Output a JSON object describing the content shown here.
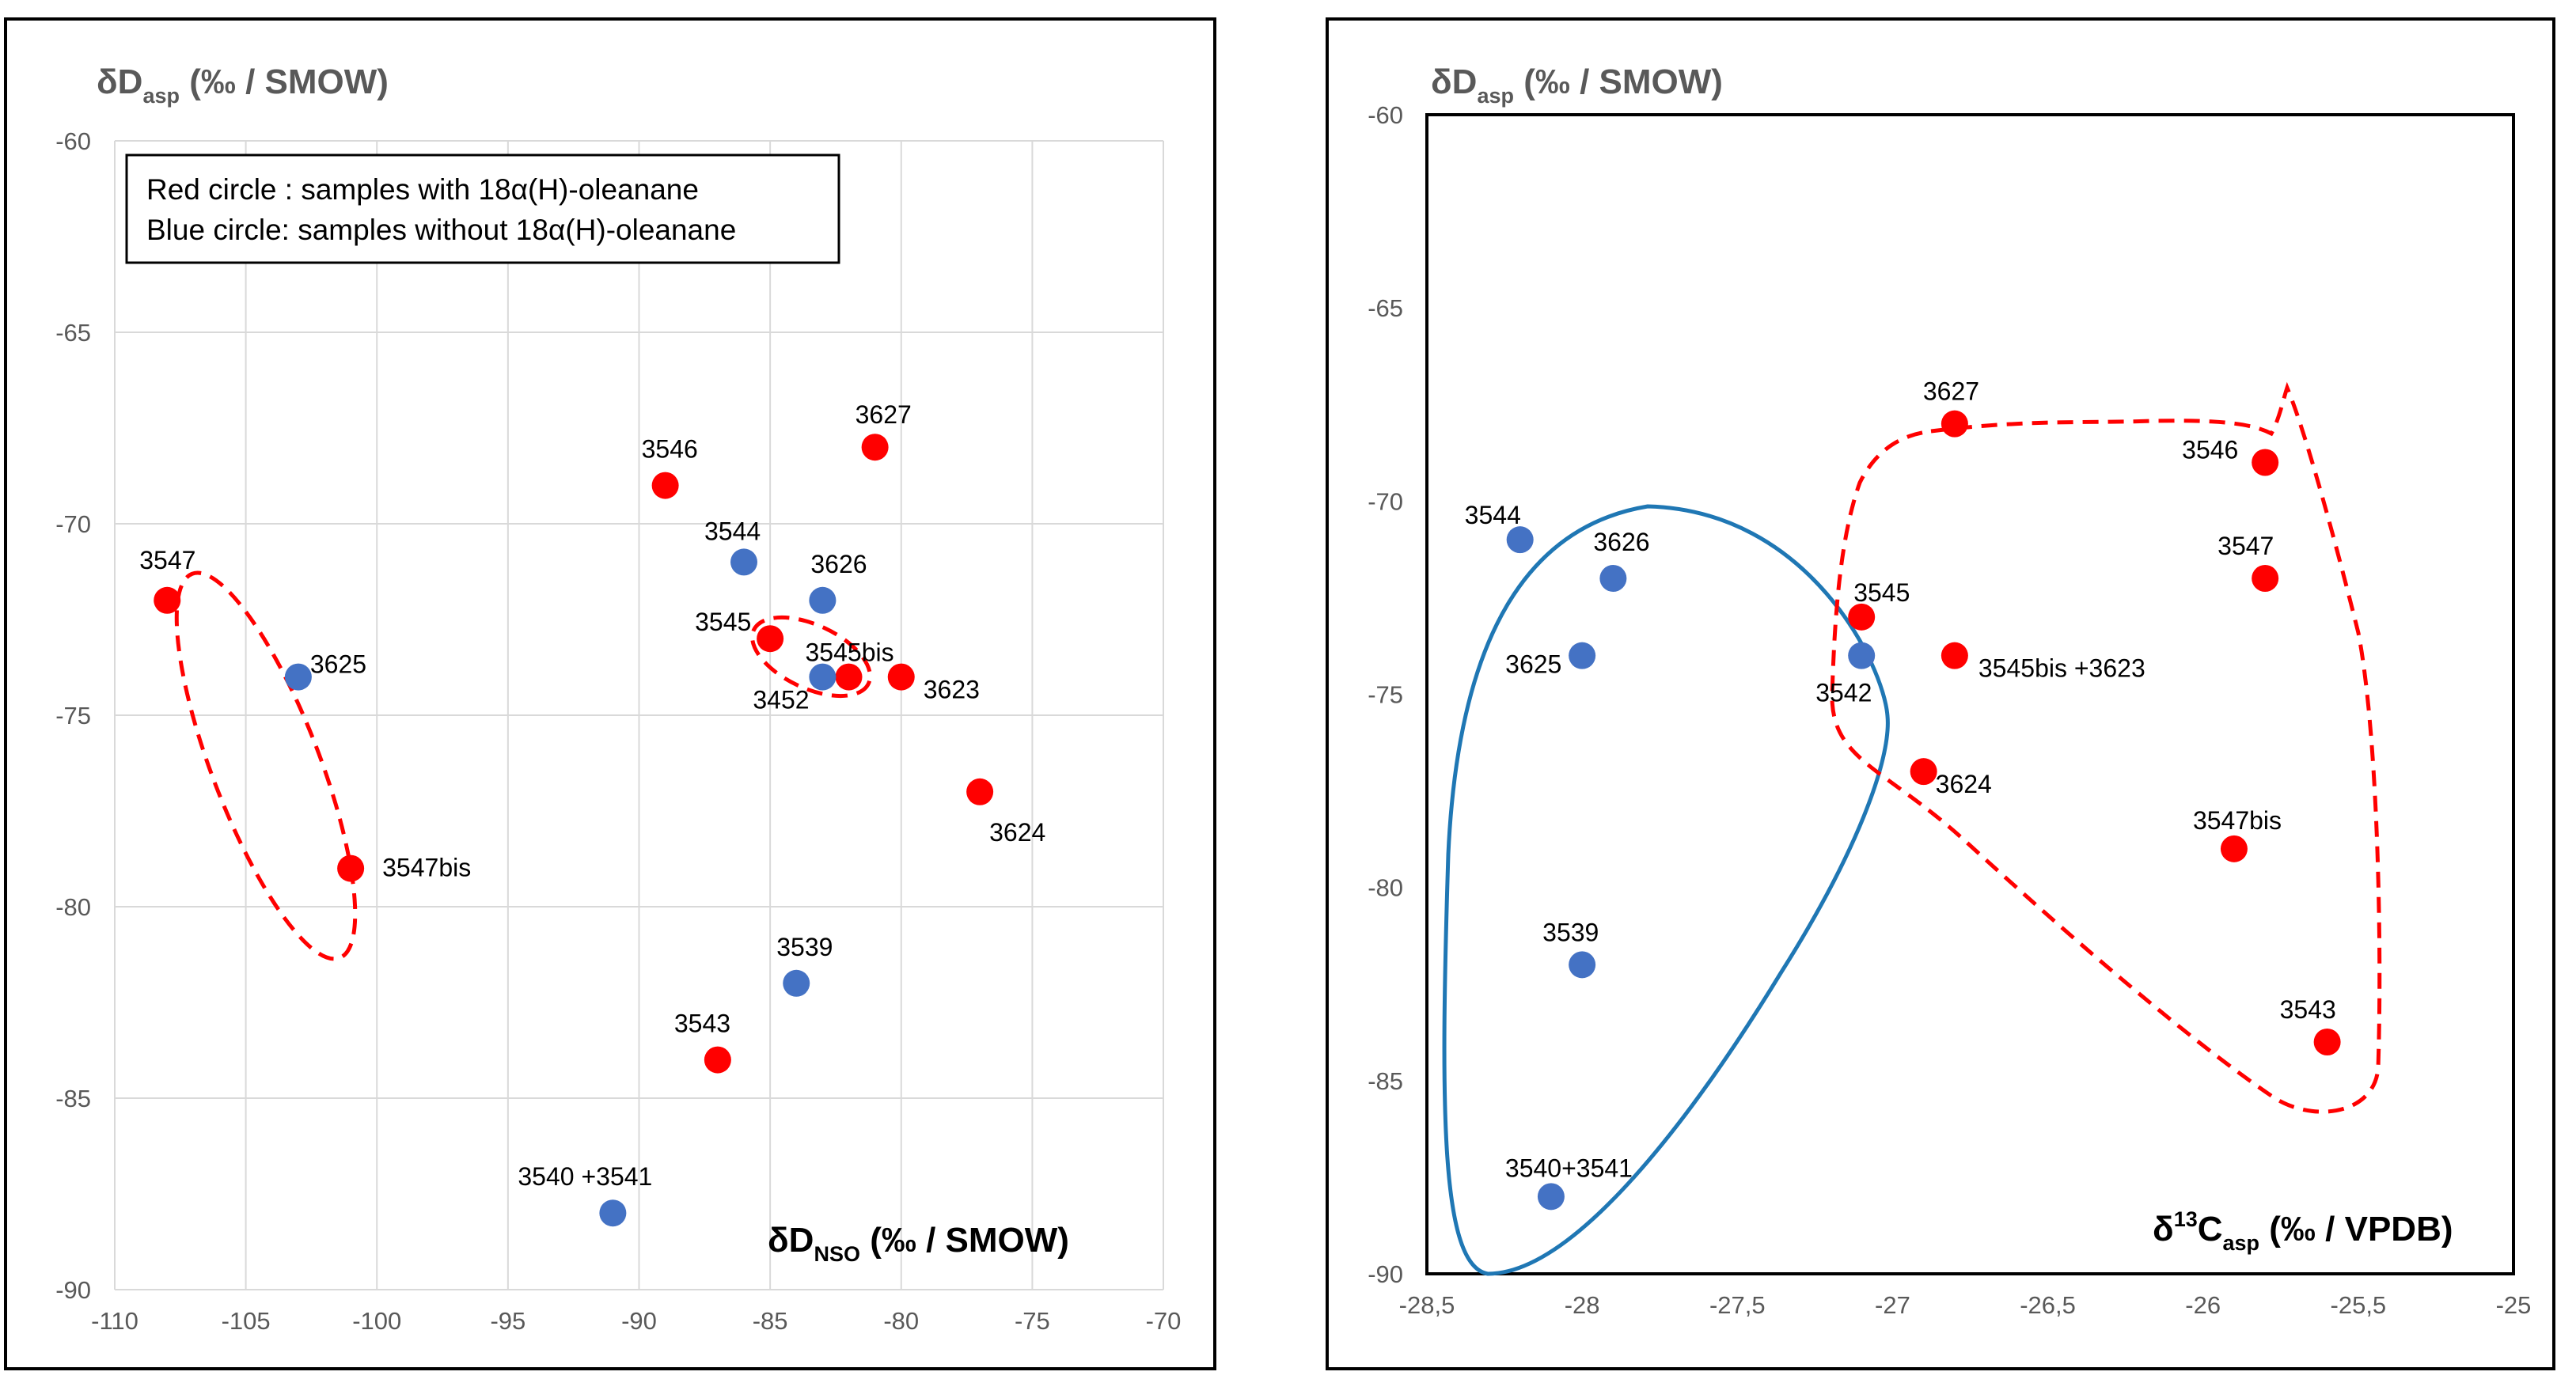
{
  "chart_data": [
    {
      "type": "scatter",
      "title": "",
      "ylabel_main": "δD",
      "ylabel_sub": "asp",
      "ylabel_rest": " (‰ / SMOW)",
      "xlabel_main": "δD",
      "xlabel_sub": "NSO",
      "xlabel_rest": " (‰ / SMOW)",
      "xlim": [
        -110,
        -70
      ],
      "ylim": [
        -90,
        -60
      ],
      "xticks": [
        -110,
        -105,
        -100,
        -95,
        -90,
        -85,
        -80,
        -75,
        -70
      ],
      "yticks": [
        -60,
        -65,
        -70,
        -75,
        -80,
        -85,
        -90
      ],
      "grid": true,
      "legend": {
        "line1": "Red circle : samples with 18α(H)-oleanane",
        "line2": "Blue circle: samples without 18α(H)-oleanane"
      },
      "series": [
        {
          "name": "with 18α(H)-oleanane",
          "color": "#ff0000",
          "points": [
            {
              "label": "3547",
              "x": -108,
              "y": -72
            },
            {
              "label": "3547bis",
              "x": -101,
              "y": -79
            },
            {
              "label": "3546",
              "x": -89,
              "y": -69
            },
            {
              "label": "3627",
              "x": -81,
              "y": -68
            },
            {
              "label": "3545",
              "x": -85,
              "y": -73
            },
            {
              "label": "3545bis",
              "x": -82,
              "y": -74
            },
            {
              "label": "3623",
              "x": -80,
              "y": -74
            },
            {
              "label": "3624",
              "x": -77,
              "y": -77
            },
            {
              "label": "3543",
              "x": -87,
              "y": -84
            }
          ]
        },
        {
          "name": "without 18α(H)-oleanane",
          "color": "#4472c4",
          "points": [
            {
              "label": "3625",
              "x": -103,
              "y": -74
            },
            {
              "label": "3544",
              "x": -86,
              "y": -71
            },
            {
              "label": "3626",
              "x": -83,
              "y": -72
            },
            {
              "label": "3452",
              "x": -83,
              "y": -74
            },
            {
              "label": "3539",
              "x": -84,
              "y": -82
            },
            {
              "label": "3540 +3541",
              "x": -91,
              "y": -88
            }
          ]
        }
      ]
    },
    {
      "type": "scatter",
      "title": "",
      "ylabel_main": "δD",
      "ylabel_sub": "asp",
      "ylabel_rest": " (‰ / SMOW)",
      "xlabel_main": "δ",
      "xlabel_sup": "13",
      "xlabel_after": "C",
      "xlabel_sub": "asp",
      "xlabel_rest": " (‰ / VPDB)",
      "xlim": [
        -28.5,
        -25
      ],
      "ylim": [
        -90,
        -60
      ],
      "xticks": [
        -28.5,
        -28,
        -27.5,
        -27,
        -26.5,
        -26,
        -25.5,
        -25
      ],
      "xtick_labels": [
        "-28,5",
        "-28",
        "-27,5",
        "-27",
        "-26,5",
        "-26",
        "-25,5",
        "-25"
      ],
      "yticks": [
        -60,
        -65,
        -70,
        -75,
        -80,
        -85,
        -90
      ],
      "grid": false,
      "series": [
        {
          "name": "with 18α(H)-oleanane",
          "color": "#ff0000",
          "points": [
            {
              "label": "3627",
              "x": -26.8,
              "y": -68
            },
            {
              "label": "3546",
              "x": -25.8,
              "y": -69
            },
            {
              "label": "3547",
              "x": -25.8,
              "y": -72
            },
            {
              "label": "3545",
              "x": -27.1,
              "y": -73
            },
            {
              "label": "3545bis +3623",
              "x": -26.8,
              "y": -74
            },
            {
              "label": "3624",
              "x": -26.9,
              "y": -77
            },
            {
              "label": "3547bis",
              "x": -25.9,
              "y": -79
            },
            {
              "label": "3543",
              "x": -25.6,
              "y": -84
            }
          ]
        },
        {
          "name": "without 18α(H)-oleanane",
          "color": "#4472c4",
          "points": [
            {
              "label": "3544",
              "x": -28.2,
              "y": -71
            },
            {
              "label": "3626",
              "x": -27.9,
              "y": -72
            },
            {
              "label": "3625",
              "x": -28,
              "y": -74
            },
            {
              "label": "3542",
              "x": -27.1,
              "y": -74
            },
            {
              "label": "3539",
              "x": -28,
              "y": -82
            },
            {
              "label": "3540+3541",
              "x": -28.1,
              "y": -88
            }
          ]
        }
      ]
    }
  ]
}
